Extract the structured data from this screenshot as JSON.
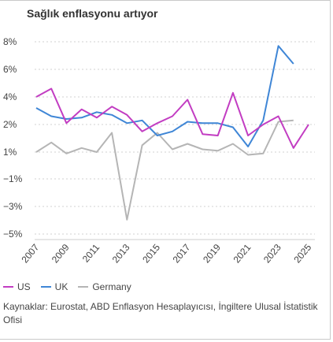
{
  "chart_data": {
    "type": "line",
    "title": "Sağlık enflasyonu artıyor",
    "x": [
      2007,
      2008,
      2009,
      2010,
      2011,
      2012,
      2013,
      2014,
      2015,
      2016,
      2017,
      2018,
      2019,
      2020,
      2021,
      2022,
      2023,
      2024,
      2025
    ],
    "x_tick_labels": [
      "2007",
      "2009",
      "2011",
      "2013",
      "2015",
      "2017",
      "2019",
      "2021",
      "2023",
      "2025"
    ],
    "y_tick_labels": [
      "8%",
      "6%",
      "4%",
      "2%",
      "1%",
      "−1%",
      "−3%",
      "−5%"
    ],
    "ylim": [
      -5,
      8
    ],
    "series": [
      {
        "name": "US",
        "color": "#c23dc2",
        "values": [
          4.0,
          4.6,
          2.1,
          3.1,
          2.5,
          3.3,
          2.7,
          1.5,
          2.1,
          2.6,
          3.8,
          1.3,
          1.2,
          4.3,
          1.2,
          2.0,
          2.6,
          0.3,
          2.0
        ]
      },
      {
        "name": "UK",
        "color": "#3f86d6",
        "values": [
          3.2,
          2.6,
          2.4,
          2.5,
          2.9,
          2.7,
          2.1,
          2.3,
          1.2,
          1.5,
          2.2,
          2.1,
          2.1,
          1.8,
          0.4,
          2.3,
          7.7,
          6.4,
          null
        ]
      },
      {
        "name": "Germany",
        "color": "#b5b5b5",
        "values": [
          0.0,
          0.7,
          -0.1,
          0.3,
          0.0,
          1.4,
          -4.9,
          0.5,
          1.4,
          0.2,
          0.6,
          0.2,
          0.1,
          0.6,
          -0.2,
          -0.1,
          2.2,
          2.3,
          null
        ]
      }
    ],
    "legend_position": "bottom-left",
    "grid": "horizontal-dotted"
  },
  "legend": [
    {
      "label": "US",
      "color": "#c23dc2"
    },
    {
      "label": "UK",
      "color": "#3f86d6"
    },
    {
      "label": "Germany",
      "color": "#b5b5b5"
    }
  ],
  "source_text": "Kaynaklar: Eurostat, ABD Enflasyon Hesaplayıcısı, İngiltere Ulusal İstatistik Ofisi"
}
